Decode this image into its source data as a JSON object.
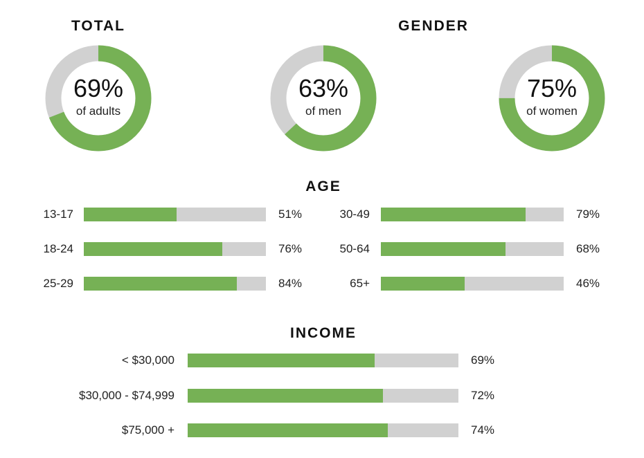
{
  "colors": {
    "accent": "#76b155",
    "track": "#d1d1d1"
  },
  "chart_data": [
    {
      "type": "pie",
      "title": "TOTAL",
      "donuts": [
        {
          "label": "of adults",
          "value": 69,
          "display": "69%"
        }
      ]
    },
    {
      "type": "pie",
      "title": "GENDER",
      "donuts": [
        {
          "label": "of men",
          "value": 63,
          "display": "63%"
        },
        {
          "label": "of women",
          "value": 75,
          "display": "75%"
        }
      ]
    },
    {
      "type": "bar",
      "title": "AGE",
      "categories": [
        "13-17",
        "18-24",
        "25-29",
        "30-49",
        "50-64",
        "65+"
      ],
      "values": [
        51,
        76,
        84,
        79,
        68,
        46
      ],
      "value_labels": [
        "51%",
        "76%",
        "84%",
        "79%",
        "68%",
        "46%"
      ],
      "xlim": [
        0,
        100
      ]
    },
    {
      "type": "bar",
      "title": "INCOME",
      "categories": [
        "< $30,000",
        "$30,000 - $74,999",
        "$75,000 +"
      ],
      "values": [
        69,
        72,
        74
      ],
      "value_labels": [
        "69%",
        "72%",
        "74%"
      ],
      "xlim": [
        0,
        100
      ]
    }
  ]
}
